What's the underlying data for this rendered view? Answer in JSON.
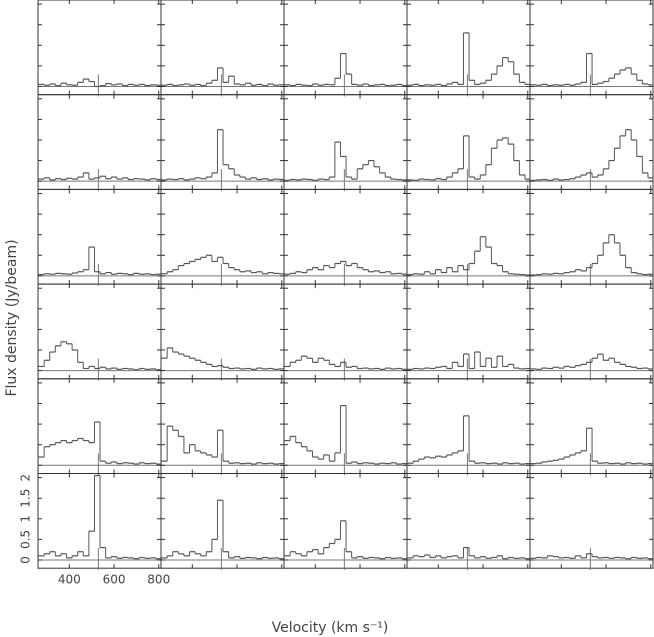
{
  "chart_data": {
    "type": "step",
    "xlabel": "Velocity (km s⁻¹)",
    "ylabel": "Flux density (Jy/beam)",
    "x": [
      275,
      300,
      325,
      350,
      375,
      400,
      425,
      450,
      475,
      500,
      525,
      550,
      575,
      600,
      625,
      650,
      675,
      700,
      725,
      750,
      775,
      800
    ],
    "xlim": [
      260,
      810
    ],
    "ylim": [
      -0.2,
      2.1
    ],
    "xticks": [
      400,
      600,
      800
    ],
    "yticks": [
      0,
      0.5,
      1,
      1.5,
      2
    ],
    "marker_velocity": 530,
    "color": "#555555",
    "panels": [
      {
        "values": [
          0.05,
          0.03,
          0.06,
          0.02,
          0.08,
          0.04,
          0.03,
          0.1,
          0.18,
          0.12,
          0.0,
          0.02,
          0.07,
          0.04,
          0.06,
          0.02,
          0.05,
          0.03,
          0.05,
          0.02,
          0.04,
          0.03
        ]
      },
      {
        "values": [
          0.03,
          0.05,
          0.02,
          0.04,
          0.06,
          0.03,
          0.05,
          0.02,
          0.08,
          0.15,
          0.45,
          0.1,
          0.25,
          0.06,
          0.04,
          0.08,
          0.03,
          0.05,
          0.02,
          0.06,
          0.03,
          0.04
        ]
      },
      {
        "values": [
          0.04,
          0.02,
          0.05,
          0.03,
          0.02,
          0.06,
          0.03,
          0.05,
          0.04,
          0.2,
          0.8,
          0.3,
          0.05,
          0.03,
          0.06,
          0.02,
          0.04,
          0.05,
          0.02,
          0.03,
          0.05,
          0.02
        ]
      },
      {
        "values": [
          0.03,
          0.05,
          0.02,
          0.04,
          0.03,
          0.05,
          0.02,
          0.06,
          0.1,
          0.05,
          1.3,
          0.15,
          0.05,
          0.08,
          0.15,
          0.3,
          0.5,
          0.7,
          0.6,
          0.3,
          0.1,
          0.05
        ]
      },
      {
        "values": [
          0.04,
          0.03,
          0.05,
          0.02,
          0.04,
          0.03,
          0.05,
          0.03,
          0.06,
          0.1,
          0.8,
          0.05,
          0.08,
          0.12,
          0.2,
          0.3,
          0.4,
          0.45,
          0.3,
          0.15,
          0.06,
          0.04
        ]
      },
      {
        "values": [
          0.05,
          0.08,
          0.03,
          0.06,
          0.04,
          0.07,
          0.05,
          0.1,
          0.2,
          0.05,
          0.08,
          0.12,
          0.06,
          0.1,
          0.05,
          0.08,
          0.04,
          0.06,
          0.05,
          0.03,
          0.06,
          0.04
        ]
      },
      {
        "values": [
          0.03,
          0.05,
          0.04,
          0.06,
          0.03,
          0.05,
          0.08,
          0.06,
          0.1,
          0.2,
          1.25,
          0.4,
          0.3,
          0.15,
          0.1,
          0.05,
          0.08,
          0.04,
          0.06,
          0.03,
          0.05,
          0.04
        ]
      },
      {
        "values": [
          0.02,
          0.04,
          0.03,
          0.05,
          0.04,
          0.02,
          0.05,
          0.04,
          0.1,
          0.95,
          0.6,
          0.1,
          0.05,
          0.3,
          0.4,
          0.5,
          0.35,
          0.2,
          0.1,
          0.05,
          0.04,
          0.03
        ]
      },
      {
        "values": [
          0.03,
          0.02,
          0.05,
          0.04,
          0.03,
          0.06,
          0.04,
          0.1,
          0.2,
          0.3,
          1.1,
          0.1,
          0.05,
          0.15,
          0.4,
          0.8,
          1.0,
          1.05,
          0.9,
          0.5,
          0.15,
          0.05
        ]
      },
      {
        "values": [
          0.02,
          0.03,
          0.04,
          0.02,
          0.05,
          0.03,
          0.04,
          0.06,
          0.1,
          0.15,
          0.2,
          0.1,
          0.15,
          0.3,
          0.5,
          0.8,
          1.1,
          1.25,
          1.0,
          0.6,
          0.2,
          0.08
        ]
      },
      {
        "values": [
          0.03,
          0.05,
          0.04,
          0.06,
          0.05,
          0.04,
          0.07,
          0.1,
          0.15,
          0.7,
          0.1,
          0.05,
          0.08,
          0.04,
          0.06,
          0.05,
          0.03,
          0.06,
          0.04,
          0.05,
          0.03,
          0.04
        ]
      },
      {
        "values": [
          0.05,
          0.1,
          0.15,
          0.25,
          0.3,
          0.35,
          0.4,
          0.45,
          0.5,
          0.35,
          0.45,
          0.3,
          0.2,
          0.15,
          0.1,
          0.12,
          0.08,
          0.1,
          0.05,
          0.08,
          0.06,
          0.05
        ]
      },
      {
        "values": [
          0.04,
          0.06,
          0.1,
          0.08,
          0.15,
          0.2,
          0.15,
          0.25,
          0.2,
          0.3,
          0.35,
          0.25,
          0.3,
          0.2,
          0.15,
          0.1,
          0.12,
          0.08,
          0.1,
          0.05,
          0.06,
          0.04
        ]
      },
      {
        "values": [
          0.03,
          0.05,
          0.04,
          0.1,
          0.05,
          0.15,
          0.08,
          0.2,
          0.1,
          0.25,
          0.15,
          0.3,
          0.6,
          0.95,
          0.7,
          0.3,
          0.25,
          0.1,
          0.05,
          0.04,
          0.03,
          0.02
        ]
      },
      {
        "values": [
          0.02,
          0.03,
          0.05,
          0.04,
          0.06,
          0.05,
          0.08,
          0.1,
          0.15,
          0.12,
          0.2,
          0.3,
          0.5,
          0.8,
          1.0,
          0.8,
          0.5,
          0.2,
          0.08,
          0.05,
          0.03,
          0.04
        ]
      },
      {
        "values": [
          0.1,
          0.25,
          0.45,
          0.6,
          0.7,
          0.65,
          0.5,
          0.2,
          0.05,
          0.1,
          0.05,
          0.08,
          0.04,
          0.06,
          0.03,
          0.05,
          0.04,
          0.02,
          0.05,
          0.03,
          0.04,
          0.02
        ]
      },
      {
        "values": [
          0.3,
          0.55,
          0.45,
          0.4,
          0.35,
          0.3,
          0.25,
          0.2,
          0.15,
          0.1,
          0.12,
          0.08,
          0.05,
          0.06,
          0.04,
          0.05,
          0.03,
          0.06,
          0.04,
          0.05,
          0.03,
          0.04
        ]
      },
      {
        "values": [
          0.1,
          0.2,
          0.25,
          0.35,
          0.3,
          0.2,
          0.3,
          0.25,
          0.15,
          0.1,
          0.2,
          0.08,
          0.1,
          0.05,
          0.06,
          0.04,
          0.05,
          0.03,
          0.06,
          0.04,
          0.05,
          0.03
        ]
      },
      {
        "values": [
          0.03,
          0.05,
          0.04,
          0.06,
          0.05,
          0.08,
          0.1,
          0.05,
          0.2,
          0.1,
          0.4,
          0.05,
          0.45,
          0.1,
          0.3,
          0.08,
          0.35,
          0.1,
          0.15,
          0.06,
          0.04,
          0.05
        ]
      },
      {
        "values": [
          0.04,
          0.03,
          0.06,
          0.05,
          0.08,
          0.06,
          0.1,
          0.08,
          0.12,
          0.15,
          0.2,
          0.3,
          0.4,
          0.25,
          0.3,
          0.2,
          0.15,
          0.1,
          0.08,
          0.05,
          0.06,
          0.04
        ]
      },
      {
        "values": [
          0.2,
          0.45,
          0.5,
          0.55,
          0.6,
          0.55,
          0.6,
          0.65,
          0.6,
          0.55,
          1.05,
          0.1,
          0.05,
          0.08,
          0.04,
          0.06,
          0.05,
          0.03,
          0.06,
          0.04,
          0.05,
          0.03
        ]
      },
      {
        "values": [
          0.1,
          0.95,
          0.85,
          0.7,
          0.3,
          0.5,
          0.35,
          0.3,
          0.25,
          0.2,
          0.85,
          0.1,
          0.05,
          0.06,
          0.04,
          0.05,
          0.03,
          0.06,
          0.04,
          0.05,
          0.03,
          0.04
        ]
      },
      {
        "values": [
          0.6,
          0.7,
          0.55,
          0.45,
          0.35,
          0.2,
          0.15,
          0.25,
          0.1,
          0.3,
          1.45,
          0.05,
          0.08,
          0.04,
          0.06,
          0.05,
          0.03,
          0.05,
          0.04,
          0.06,
          0.03,
          0.04
        ]
      },
      {
        "values": [
          0.05,
          0.1,
          0.15,
          0.2,
          0.18,
          0.22,
          0.2,
          0.25,
          0.3,
          0.35,
          1.2,
          0.1,
          0.05,
          0.06,
          0.04,
          0.05,
          0.03,
          0.06,
          0.04,
          0.05,
          0.03,
          0.04
        ]
      },
      {
        "values": [
          0.04,
          0.05,
          0.08,
          0.1,
          0.12,
          0.15,
          0.2,
          0.25,
          0.3,
          0.35,
          0.9,
          0.1,
          0.05,
          0.06,
          0.04,
          0.05,
          0.03,
          0.06,
          0.04,
          0.05,
          0.03,
          0.04
        ]
      },
      {
        "values": [
          0.1,
          0.15,
          0.2,
          0.1,
          0.15,
          0.05,
          0.1,
          0.2,
          0.1,
          0.7,
          2.05,
          0.3,
          0.05,
          0.08,
          0.04,
          0.06,
          0.05,
          0.03,
          0.06,
          0.04,
          0.05,
          0.03
        ]
      },
      {
        "values": [
          0.05,
          0.1,
          0.2,
          0.15,
          0.1,
          0.2,
          0.15,
          0.1,
          0.2,
          0.5,
          1.45,
          0.2,
          0.05,
          0.08,
          0.04,
          0.06,
          0.05,
          0.03,
          0.06,
          0.04,
          0.05,
          0.03
        ]
      },
      {
        "values": [
          0.1,
          0.2,
          0.15,
          0.1,
          0.2,
          0.25,
          0.15,
          0.3,
          0.4,
          0.5,
          0.95,
          0.2,
          0.05,
          0.08,
          0.04,
          0.06,
          0.05,
          0.03,
          0.06,
          0.04,
          0.05,
          0.03
        ]
      },
      {
        "values": [
          0.05,
          0.1,
          0.08,
          0.12,
          0.06,
          0.1,
          0.05,
          0.08,
          0.1,
          0.05,
          0.3,
          0.1,
          0.05,
          0.08,
          0.04,
          0.06,
          0.1,
          0.03,
          0.06,
          0.04,
          0.05,
          0.03
        ]
      },
      {
        "values": [
          0.04,
          0.06,
          0.05,
          0.1,
          0.08,
          0.05,
          0.06,
          0.04,
          0.1,
          0.05,
          0.15,
          0.08,
          0.05,
          0.06,
          0.04,
          0.06,
          0.05,
          0.03,
          0.06,
          0.04,
          0.05,
          0.03
        ]
      }
    ]
  }
}
